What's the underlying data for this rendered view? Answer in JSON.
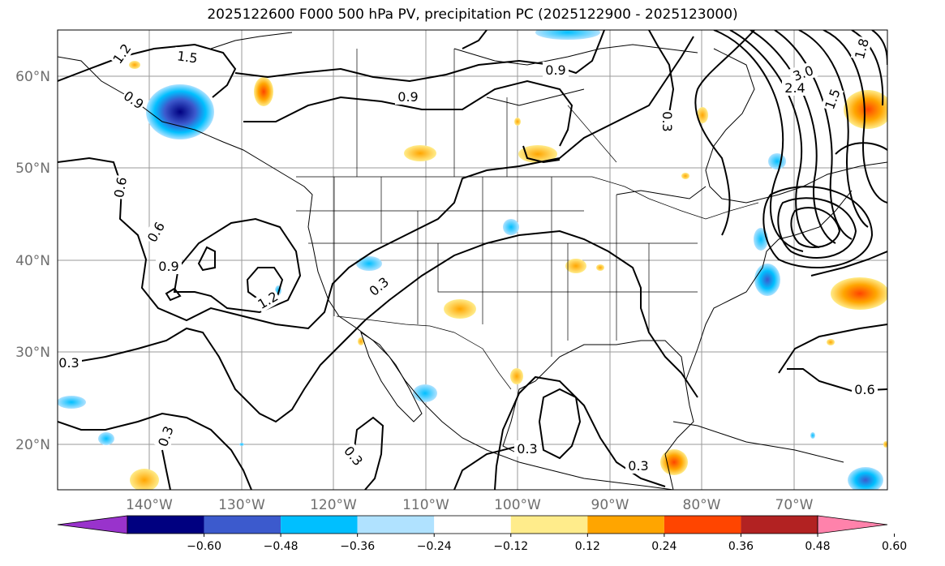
{
  "title": "2025122600 F000 500 hPa PV, precipitation PC (2025122900 - 2025123000)",
  "lat_labels": [
    "60°N",
    "50°N",
    "40°N",
    "30°N",
    "20°N"
  ],
  "lon_labels": [
    "140°W",
    "130°W",
    "120°W",
    "110°W",
    "100°W",
    "90°W",
    "80°W",
    "70°W"
  ],
  "colorbar": {
    "tick_labels": [
      "−0.60",
      "−0.48",
      "−0.36",
      "−0.24",
      "−0.12",
      "0.12",
      "0.24",
      "0.36",
      "0.48",
      "0.60"
    ],
    "colors": [
      "#9933cc",
      "#000080",
      "#3c5acd",
      "#00bfff",
      "#b0e2ff",
      "#ffffff",
      "#ffec8b",
      "#ffa500",
      "#ff4500",
      "#b22222",
      "#ff82ab"
    ]
  },
  "contour_labels": [
    {
      "id": "c1",
      "text": "1.2"
    },
    {
      "id": "c2",
      "text": "1.5"
    },
    {
      "id": "c3",
      "text": "0.9"
    },
    {
      "id": "c4",
      "text": "0.9"
    },
    {
      "id": "c5",
      "text": "0.9"
    },
    {
      "id": "c6",
      "text": "0.6"
    },
    {
      "id": "c7",
      "text": "0.6"
    },
    {
      "id": "c8",
      "text": "0.9"
    },
    {
      "id": "c9",
      "text": "1.2"
    },
    {
      "id": "c10",
      "text": "0.3"
    },
    {
      "id": "c11",
      "text": "0.3"
    },
    {
      "id": "c12",
      "text": "0.3"
    },
    {
      "id": "c13",
      "text": "0.3"
    },
    {
      "id": "c14",
      "text": "0.6"
    },
    {
      "id": "c15",
      "text": "0.3"
    },
    {
      "id": "c16",
      "text": "0.3"
    },
    {
      "id": "c17",
      "text": "0.3"
    },
    {
      "id": "c18",
      "text": "1.8"
    },
    {
      "id": "c19",
      "text": "1.5"
    },
    {
      "id": "c20",
      "text": "2.4"
    },
    {
      "id": "c21",
      "text": "3.0"
    }
  ]
}
